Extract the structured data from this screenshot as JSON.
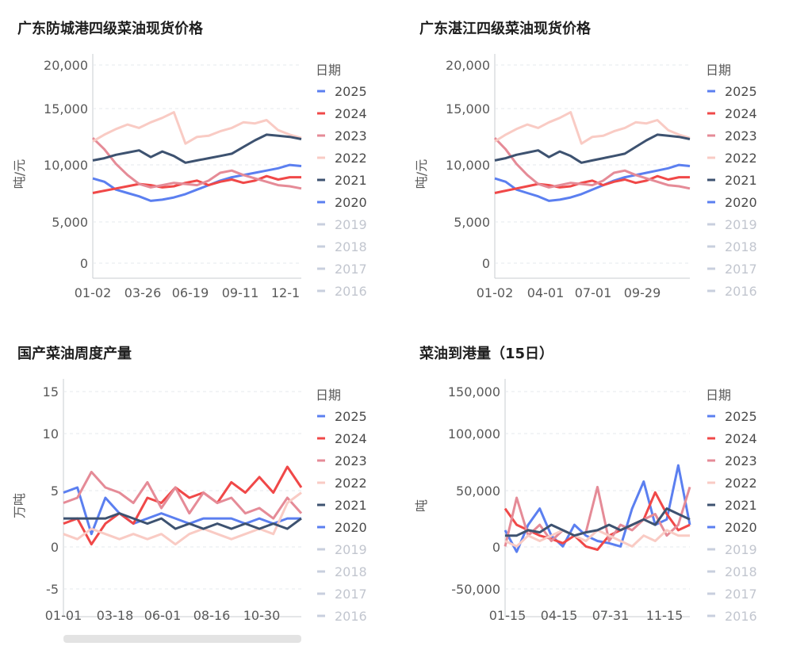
{
  "legend_title": "日期",
  "chart_data": [
    {
      "type": "line",
      "title": "广东防城港四级菜油现货价格",
      "ylabel": "吨/元",
      "ylim": [
        0,
        20000
      ],
      "yticks": [
        "20,000",
        "15,000",
        "10,000",
        "5,000",
        "0"
      ],
      "xticks": [
        "01-02",
        "03-26",
        "06-19",
        "09-11",
        "12-1"
      ],
      "series": [
        {
          "name": "2025",
          "color": "#5b7ff0",
          "values": [
            8900,
            8600,
            7900,
            7600,
            7300,
            6900,
            7000,
            7200,
            7500,
            7900,
            8300,
            8700,
            9000,
            9200,
            9400,
            9600,
            9800,
            10100,
            10000
          ]
        },
        {
          "name": "2024",
          "color": "#f04848",
          "values": [
            7600,
            7800,
            8000,
            8200,
            8400,
            8300,
            8100,
            8200,
            8500,
            8700,
            8300,
            8600,
            8800,
            8500,
            8700,
            9100,
            8800,
            9000,
            9000
          ]
        },
        {
          "name": "2023",
          "color": "#e58b97",
          "values": [
            12500,
            11500,
            10200,
            9200,
            8400,
            8100,
            8300,
            8500,
            8400,
            8300,
            8700,
            9400,
            9600,
            9200,
            8900,
            8600,
            8300,
            8200,
            8000
          ]
        },
        {
          "name": "2022",
          "color": "#f9cbc4",
          "values": [
            12200,
            12800,
            13300,
            13700,
            13400,
            13900,
            14300,
            14800,
            12000,
            12600,
            12700,
            13100,
            13400,
            13900,
            13800,
            14100,
            13200,
            12800,
            12500
          ]
        },
        {
          "name": "2021",
          "color": "#3d5270",
          "values": [
            10500,
            10700,
            11000,
            11200,
            11400,
            10800,
            11300,
            10900,
            10300,
            10500,
            10700,
            10900,
            11100,
            11700,
            12300,
            12800,
            12700,
            12600,
            12400
          ]
        },
        {
          "name": "2020",
          "color": "#5b7ff0",
          "values": []
        },
        {
          "name": "2019",
          "color": "#c8cfde",
          "values": []
        },
        {
          "name": "2018",
          "color": "#c8cfde",
          "values": []
        },
        {
          "name": "2017",
          "color": "#c8cfde",
          "values": []
        },
        {
          "name": "2016",
          "color": "#c8cfde",
          "values": []
        }
      ]
    },
    {
      "type": "line",
      "title": "广东湛江四级菜油现货价格",
      "ylabel": "吨/元",
      "ylim": [
        0,
        20000
      ],
      "yticks": [
        "20,000",
        "15,000",
        "10,000",
        "5,000",
        "0"
      ],
      "xticks": [
        "01-02",
        "04-01",
        "07-01",
        "09-29"
      ],
      "series": [
        {
          "name": "2025",
          "color": "#5b7ff0",
          "values": [
            8900,
            8600,
            7900,
            7600,
            7300,
            6900,
            7000,
            7200,
            7500,
            7900,
            8300,
            8700,
            9000,
            9200,
            9400,
            9600,
            9800,
            10100,
            10000
          ]
        },
        {
          "name": "2024",
          "color": "#f04848",
          "values": [
            7600,
            7800,
            8000,
            8200,
            8400,
            8300,
            8100,
            8200,
            8500,
            8700,
            8300,
            8600,
            8800,
            8500,
            8700,
            9100,
            8800,
            9000,
            9000
          ]
        },
        {
          "name": "2023",
          "color": "#e58b97",
          "values": [
            12500,
            11500,
            10200,
            9200,
            8400,
            8100,
            8300,
            8500,
            8400,
            8300,
            8700,
            9400,
            9600,
            9200,
            8900,
            8600,
            8300,
            8200,
            8000
          ]
        },
        {
          "name": "2022",
          "color": "#f9cbc4",
          "values": [
            12200,
            12800,
            13300,
            13700,
            13400,
            13900,
            14300,
            14800,
            12000,
            12600,
            12700,
            13100,
            13400,
            13900,
            13800,
            14100,
            13200,
            12800,
            12500
          ]
        },
        {
          "name": "2021",
          "color": "#3d5270",
          "values": [
            10500,
            10700,
            11000,
            11200,
            11400,
            10800,
            11300,
            10900,
            10300,
            10500,
            10700,
            10900,
            11100,
            11700,
            12300,
            12800,
            12700,
            12600,
            12400
          ]
        },
        {
          "name": "2020",
          "color": "#5b7ff0",
          "values": []
        },
        {
          "name": "2019",
          "color": "#c8cfde",
          "values": []
        },
        {
          "name": "2018",
          "color": "#c8cfde",
          "values": []
        },
        {
          "name": "2017",
          "color": "#c8cfde",
          "values": []
        },
        {
          "name": "2016",
          "color": "#c8cfde",
          "values": []
        }
      ]
    },
    {
      "type": "line",
      "title": "国产菜油周度产量",
      "ylabel": "万吨",
      "ylim": [
        -7,
        16
      ],
      "yticks": [
        "15",
        "10",
        "5",
        "0",
        "-5"
      ],
      "xticks": [
        "01-01",
        "03-18",
        "06-01",
        "08-16",
        "10-30"
      ],
      "series": [
        {
          "name": "2025",
          "color": "#5b7ff0",
          "values": [
            5,
            5.5,
            1,
            4.5,
            3,
            2,
            2.5,
            3,
            2.5,
            2,
            2.5,
            2.5,
            2.5,
            2,
            2.5,
            2,
            2.5,
            2.5
          ]
        },
        {
          "name": "2024",
          "color": "#f04848",
          "values": [
            2,
            2.5,
            0,
            2,
            3,
            2,
            4.5,
            4,
            5.5,
            4.5,
            5,
            4,
            6,
            5,
            6.5,
            5,
            7.5,
            5.5
          ]
        },
        {
          "name": "2023",
          "color": "#e58b97",
          "values": [
            4,
            4.5,
            7,
            5.5,
            5,
            4,
            6,
            3.5,
            5.5,
            3,
            5,
            4,
            4.5,
            3,
            3.5,
            2.5,
            4.5,
            3
          ]
        },
        {
          "name": "2022",
          "color": "#f9cbc4",
          "values": [
            1,
            0.5,
            1.5,
            1,
            0.5,
            1,
            0.5,
            1,
            0,
            1,
            1.5,
            1,
            0.5,
            1,
            1.5,
            1,
            4,
            5
          ]
        },
        {
          "name": "2021",
          "color": "#3d5270",
          "values": [
            2.5,
            2.5,
            2.5,
            2.5,
            3,
            2.5,
            2,
            2.5,
            1.5,
            2,
            1.5,
            2,
            1.5,
            2,
            1.5,
            2,
            1.5,
            2.5
          ]
        },
        {
          "name": "2020",
          "color": "#5b7ff0",
          "values": []
        },
        {
          "name": "2019",
          "color": "#c8cfde",
          "values": []
        },
        {
          "name": "2018",
          "color": "#c8cfde",
          "values": []
        },
        {
          "name": "2017",
          "color": "#c8cfde",
          "values": []
        },
        {
          "name": "2016",
          "color": "#c8cfde",
          "values": []
        }
      ]
    },
    {
      "type": "line",
      "title": "菜油到港量（15日）",
      "ylabel": "吨",
      "ylim": [
        -60000,
        160000
      ],
      "yticks": [
        "150,000",
        "100,000",
        "50,000",
        "0",
        "-50,000"
      ],
      "xticks": [
        "01-15",
        "04-15",
        "07-31",
        "11-15"
      ],
      "series": [
        {
          "name": "2025",
          "color": "#5b7ff0",
          "values": [
            20000,
            0,
            25000,
            40000,
            15000,
            5000,
            25000,
            15000,
            10000,
            8000,
            5000,
            40000,
            65000,
            25000,
            30000,
            80000,
            25000
          ]
        },
        {
          "name": "2024",
          "color": "#f04848",
          "values": [
            40000,
            25000,
            20000,
            15000,
            12000,
            8000,
            15000,
            5000,
            2000,
            15000,
            20000,
            25000,
            30000,
            55000,
            35000,
            20000,
            25000
          ]
        },
        {
          "name": "2023",
          "color": "#e58b97",
          "values": [
            5000,
            50000,
            15000,
            25000,
            10000,
            20000,
            15000,
            18000,
            60000,
            10000,
            25000,
            20000,
            30000,
            35000,
            15000,
            25000,
            60000
          ]
        },
        {
          "name": "2022",
          "color": "#f9cbc4",
          "values": [
            10000,
            5000,
            15000,
            10000,
            15000,
            20000,
            15000,
            10000,
            20000,
            15000,
            10000,
            5000,
            15000,
            10000,
            20000,
            15000,
            15000
          ]
        },
        {
          "name": "2021",
          "color": "#3d5270",
          "values": [
            15000,
            15000,
            20000,
            18000,
            25000,
            20000,
            15000,
            18000,
            20000,
            25000,
            20000,
            25000,
            30000,
            25000,
            40000,
            35000,
            30000
          ]
        },
        {
          "name": "2020",
          "color": "#5b7ff0",
          "values": []
        },
        {
          "name": "2019",
          "color": "#c8cfde",
          "values": []
        },
        {
          "name": "2018",
          "color": "#c8cfde",
          "values": []
        },
        {
          "name": "2017",
          "color": "#c8cfde",
          "values": []
        },
        {
          "name": "2016",
          "color": "#c8cfde",
          "values": []
        }
      ]
    }
  ]
}
